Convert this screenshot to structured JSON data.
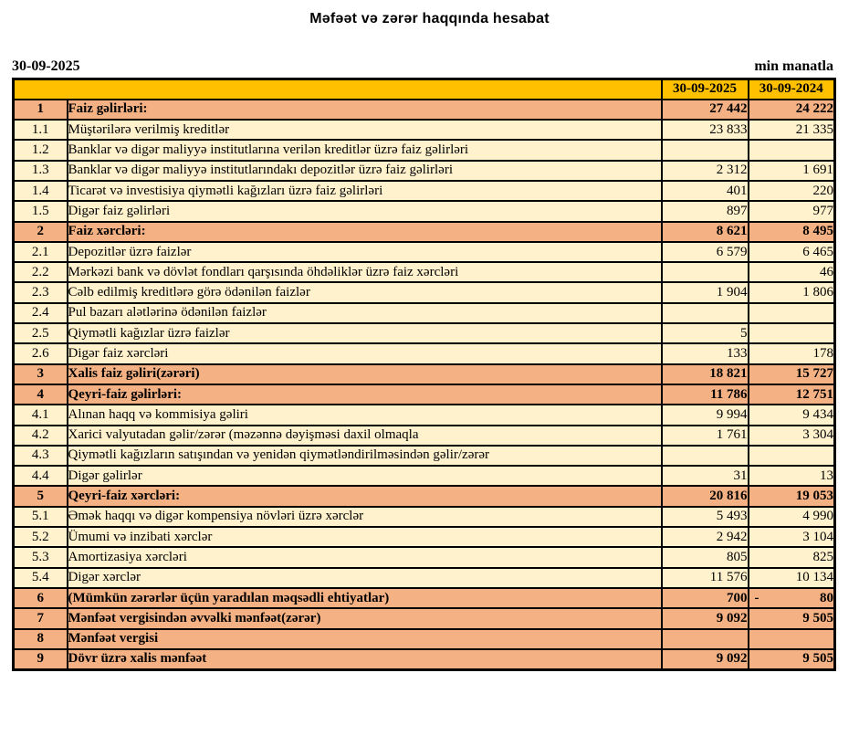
{
  "title": "Məfəət və zərər haqqında hesabat",
  "date_label": "30-09-2025",
  "unit_label": "min manatla",
  "colors": {
    "header_bg": "#FFC000",
    "section_bg": "#F4B183",
    "detail_bg": "#FFF2CC",
    "border": "#000000"
  },
  "table": {
    "col_2025": "30-09-2025",
    "col_2024": "30-09-2024",
    "rows": [
      {
        "no": "1",
        "label": "Faiz gəlirləri:",
        "v2025": "27 442",
        "v2024": "24 222",
        "kind": "section"
      },
      {
        "no": "1.1",
        "label": "Müştərilərə verilmiş kreditlər",
        "v2025": "23 833",
        "v2024": "21 335",
        "kind": "detail"
      },
      {
        "no": "1.2",
        "label": "Banklar və digər maliyyə institutlarına verilən kreditlər üzrə faiz gəlirləri",
        "v2025": "",
        "v2024": "",
        "kind": "detail"
      },
      {
        "no": "1.3",
        "label": "Banklar və digər maliyyə institutlarındakı depozitlər üzrə faiz gəlirləri",
        "v2025": "2 312",
        "v2024": "1 691",
        "kind": "detail"
      },
      {
        "no": "1.4",
        "label": "Ticarət və investisiya qiymətli kağızları üzrə faiz gəlirləri",
        "v2025": "401",
        "v2024": "220",
        "kind": "detail"
      },
      {
        "no": "1.5",
        "label": "Digər faiz gəlirləri",
        "v2025": "897",
        "v2024": "977",
        "kind": "detail"
      },
      {
        "no": "2",
        "label": "Faiz xərcləri:",
        "v2025": "8 621",
        "v2024": "8 495",
        "kind": "section"
      },
      {
        "no": "2.1",
        "label": "Depozitlər üzrə faizlər",
        "v2025": "6 579",
        "v2024": "6 465",
        "kind": "detail"
      },
      {
        "no": "2.2",
        "label": "Mərkəzi bank və dövlət fondları qarşısında öhdəliklər üzrə faiz xərcləri",
        "v2025": "",
        "v2024": "46",
        "kind": "detail"
      },
      {
        "no": "2.3",
        "label": "Cəlb edilmiş kreditlərə görə ödənilən faizlər",
        "v2025": "1 904",
        "v2024": "1 806",
        "kind": "detail"
      },
      {
        "no": "2.4",
        "label": "Pul bazarı alətlərinə ödənilən faizlər",
        "v2025": "",
        "v2024": "",
        "kind": "detail"
      },
      {
        "no": "2.5",
        "label": "Qiymətli kağızlar üzrə faizlər",
        "v2025": "5",
        "v2024": "",
        "kind": "detail"
      },
      {
        "no": "2.6",
        "label": "Digər faiz xərcləri",
        "v2025": "133",
        "v2024": "178",
        "kind": "detail"
      },
      {
        "no": "3",
        "label": "Xalis faiz gəliri(zərəri)",
        "v2025": "18 821",
        "v2024": "15 727",
        "kind": "section"
      },
      {
        "no": "4",
        "label": "Qeyri-faiz gəlirləri:",
        "v2025": "11 786",
        "v2024": "12 751",
        "kind": "section"
      },
      {
        "no": "4.1",
        "label": "Alınan haqq və kommisiya gəliri",
        "v2025": "9 994",
        "v2024": "9 434",
        "kind": "detail"
      },
      {
        "no": "4.2",
        "label": "Xarici valyutadan gəlir/zərər (məzənnə dəyişməsi daxil olmaqla",
        "v2025": "1 761",
        "v2024": "3 304",
        "kind": "detail"
      },
      {
        "no": "4.3",
        "label": "Qiymətli kağızların satışından və yenidən qiymətləndirilməsindən gəlir/zərər",
        "v2025": "",
        "v2024": "",
        "kind": "detail"
      },
      {
        "no": "4.4",
        "label": "Digər gəlirlər",
        "v2025": "31",
        "v2024": "13",
        "kind": "detail"
      },
      {
        "no": "5",
        "label": "Qeyri-faiz xərcləri:",
        "v2025": "20 816",
        "v2024": "19 053",
        "kind": "section"
      },
      {
        "no": "5.1",
        "label": "Əmək haqqı və digər kompensiya növləri üzrə xərclər",
        "v2025": "5 493",
        "v2024": "4 990",
        "kind": "detail"
      },
      {
        "no": "5.2",
        "label": "Ümumi və inzibati xərclər",
        "v2025": "2 942",
        "v2024": "3 104",
        "kind": "detail"
      },
      {
        "no": "5.3",
        "label": "Amortizasiya xərcləri",
        "v2025": "805",
        "v2024": "825",
        "kind": "detail"
      },
      {
        "no": "5.4",
        "label": "Digər xərclər",
        "v2025": "11 576",
        "v2024": "10 134",
        "kind": "detail"
      },
      {
        "no": "6",
        "label": "(Mümkün zərərlər üçün yaradılan məqsədli ehtiyatlar)",
        "v2025": "700",
        "v2024": "- 80",
        "kind": "section"
      },
      {
        "no": "7",
        "label": "Mənfəət vergisindən əvvəlki mənfəət(zərər)",
        "v2025": "9 092",
        "v2024": "9 505",
        "kind": "section"
      },
      {
        "no": "8",
        "label": "Mənfəət vergisi",
        "v2025": "",
        "v2024": "",
        "kind": "section"
      },
      {
        "no": "9",
        "label": "Dövr üzrə xalis mənfəət",
        "v2025": "9 092",
        "v2024": "9 505",
        "kind": "section"
      }
    ]
  }
}
